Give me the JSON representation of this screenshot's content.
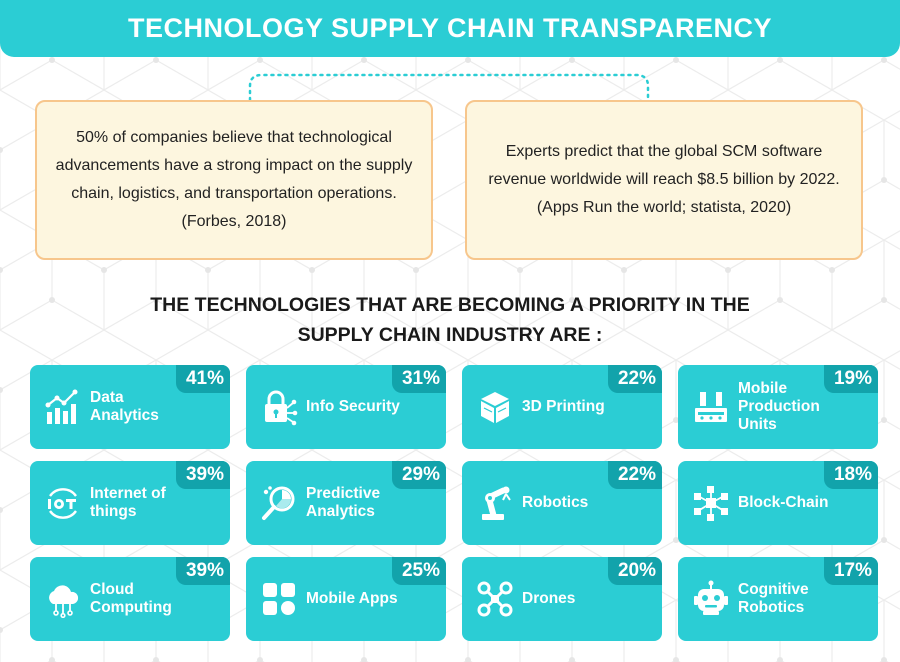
{
  "header": {
    "title": "TECHNOLOGY SUPPLY CHAIN TRANSPARENCY"
  },
  "facts": [
    {
      "text": "50% of companies believe that technological advancements have a strong  impact on the supply chain, logistics, and transportation operations. (Forbes, 2018)"
    },
    {
      "text": "Experts predict that the global SCM software revenue worldwide will reach $8.5 billion by 2022. (Apps Run the world; statista, 2020)"
    }
  ],
  "section": {
    "title_line1": "THE TECHNOLOGIES THAT ARE BECOMING A PRIORITY IN THE",
    "title_line2": "SUPPLY CHAIN INDUSTRY ARE :"
  },
  "technologies": [
    {
      "label": "Data\nAnalytics",
      "percent": "41%",
      "icon": "bar-chart-icon"
    },
    {
      "label": "Info Security",
      "percent": "31%",
      "icon": "padlock-icon"
    },
    {
      "label": "3D Printing",
      "percent": "22%",
      "icon": "cube-icon"
    },
    {
      "label": "Mobile\nProduction Units",
      "percent": "19%",
      "icon": "factory-icon"
    },
    {
      "label": "Internet of\nthings",
      "percent": "39%",
      "icon": "iot-icon"
    },
    {
      "label": "Predictive\nAnalytics",
      "percent": "29%",
      "icon": "magnifier-chart-icon"
    },
    {
      "label": "Robotics",
      "percent": "22%",
      "icon": "robot-arm-icon"
    },
    {
      "label": "Block-Chain",
      "percent": "18%",
      "icon": "network-icon"
    },
    {
      "label": "Cloud\nComputing",
      "percent": "39%",
      "icon": "cloud-icon"
    },
    {
      "label": "Mobile Apps",
      "percent": "25%",
      "icon": "app-grid-icon"
    },
    {
      "label": "Drones",
      "percent": "20%",
      "icon": "drone-icon"
    },
    {
      "label": "Cognitive\nRobotics",
      "percent": "17%",
      "icon": "robot-head-icon"
    }
  ]
}
